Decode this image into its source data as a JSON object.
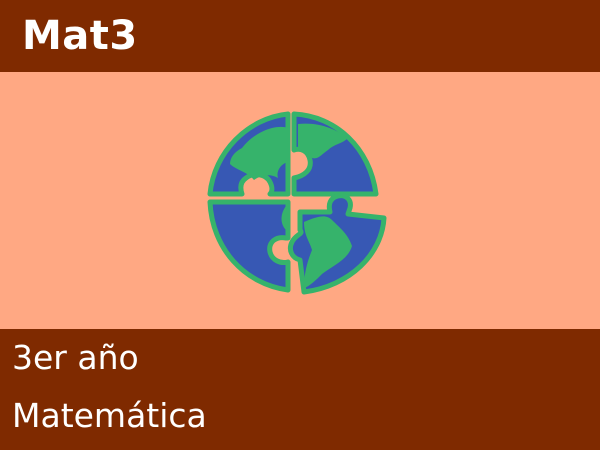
{
  "header": {
    "course_code": "Mat3"
  },
  "illustration": {
    "icon": "earth-puzzle-icon",
    "colors": {
      "ocean": "#3758b4",
      "land": "#36b36b",
      "gap": "#ffa883"
    }
  },
  "footer": {
    "year": "3er año",
    "subject": "Matemática"
  },
  "colors": {
    "bar_background": "#7f2a00",
    "panel_background": "#ffa883",
    "text": "#ffffff"
  }
}
